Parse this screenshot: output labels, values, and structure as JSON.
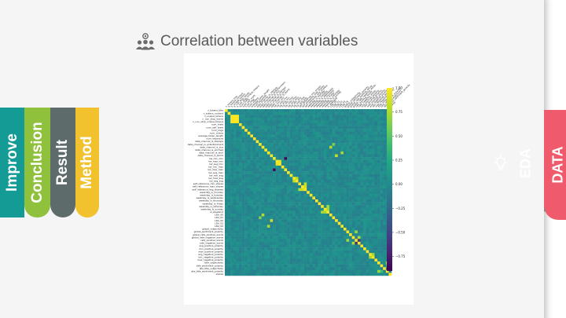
{
  "tabs": {
    "left": [
      "Improve",
      "Conclusion",
      "Result",
      "Method"
    ],
    "right": [
      "EDA",
      "DATA"
    ]
  },
  "colors": {
    "improve": "#149b95",
    "conclusion": "#8fc13c",
    "result": "#5d6b6a",
    "method": "#f2c12e",
    "eda": "#4ec7b3",
    "data": "#ef5b6c",
    "title_text": "#595959"
  },
  "slide": {
    "title": "Correlation between variables",
    "title_icon": "people-network-icon"
  },
  "chart_data": {
    "type": "heatmap",
    "colormap": "viridis",
    "grid": false,
    "n_variables": 59,
    "colorbar": {
      "ticks": [
        1.0,
        0.75,
        0.5,
        0.25,
        0.0,
        -0.25,
        -0.5,
        -0.75
      ],
      "labels": [
        "1.00",
        "0.75",
        "0.50",
        "0.25",
        "0.00",
        "−0.25",
        "−0.50",
        "−0.75"
      ],
      "range": [
        -0.9,
        1.0
      ]
    },
    "y_labels": [
      "n_tokens_title",
      "n_tokens_content",
      "n_unique_tokens",
      "n_non_stop_words",
      "n_non_stop_unique_tokens",
      "num_hrefs",
      "num_self_hrefs",
      "num_imgs",
      "num_videos",
      "average_token_length",
      "num_keywords",
      "data_channel_is_lifestyle",
      "data_channel_is_entertainment",
      "data_channel_is_bus",
      "data_channel_is_socmed",
      "data_channel_is_tech",
      "data_channel_is_world",
      "kw_min_min",
      "kw_max_min",
      "kw_avg_min",
      "kw_min_max",
      "kw_max_max",
      "kw_avg_max",
      "kw_min_avg",
      "kw_max_avg",
      "kw_avg_avg",
      "self_reference_min_shares",
      "self_reference_max_shares",
      "self_reference_avg_sharess",
      "weekday_is_monday",
      "weekday_is_tuesday",
      "weekday_is_wednesday",
      "weekday_is_thursday",
      "weekday_is_friday",
      "weekday_is_saturday",
      "weekday_is_sunday",
      "is_weekend",
      "LDA_00",
      "LDA_01",
      "LDA_02",
      "LDA_03",
      "LDA_04",
      "global_subjectivity",
      "global_sentiment_polarity",
      "global_rate_positive_words",
      "global_rate_negative_words",
      "rate_positive_words",
      "rate_negative_words",
      "avg_positive_polarity",
      "min_positive_polarity",
      "max_positive_polarity",
      "avg_negative_polarity",
      "min_negative_polarity",
      "max_negative_polarity",
      "title_subjectivity",
      "title_sentiment_polarity",
      "abs_title_subjectivity",
      "abs_title_sentiment_polarity",
      "shares"
    ],
    "strong_correlations": [
      {
        "a": "n_unique_tokens",
        "b": "n_non_stop_words",
        "value": 1.0
      },
      {
        "a": "n_unique_tokens",
        "b": "n_non_stop_unique_tokens",
        "value": 1.0
      },
      {
        "a": "n_non_stop_words",
        "b": "n_non_stop_unique_tokens",
        "value": 1.0
      },
      {
        "a": "kw_min_min",
        "b": "kw_max_max",
        "value": -0.86
      },
      {
        "a": "kw_max_min",
        "b": "kw_avg_min",
        "value": 0.94
      },
      {
        "a": "kw_max_avg",
        "b": "kw_avg_avg",
        "value": 0.81
      },
      {
        "a": "self_reference_min_shares",
        "b": "self_reference_avg_sharess",
        "value": 0.82
      },
      {
        "a": "self_reference_max_shares",
        "b": "self_reference_avg_sharess",
        "value": 0.85
      },
      {
        "a": "weekday_is_saturday",
        "b": "is_weekend",
        "value": 0.76
      },
      {
        "a": "weekday_is_sunday",
        "b": "is_weekend",
        "value": 0.74
      },
      {
        "a": "data_channel_is_world",
        "b": "LDA_02",
        "value": 0.84
      },
      {
        "a": "data_channel_is_tech",
        "b": "LDA_04",
        "value": 0.75
      },
      {
        "a": "data_channel_is_bus",
        "b": "LDA_00",
        "value": 0.77
      },
      {
        "a": "data_channel_is_entertainment",
        "b": "LDA_01",
        "value": 0.6
      },
      {
        "a": "global_sentiment_polarity",
        "b": "rate_positive_words",
        "value": 0.73
      },
      {
        "a": "global_rate_negative_words",
        "b": "rate_negative_words",
        "value": 0.78
      },
      {
        "a": "avg_negative_polarity",
        "b": "min_negative_polarity",
        "value": 0.75
      },
      {
        "a": "rate_positive_words",
        "b": "rate_negative_words",
        "value": -0.6
      },
      {
        "a": "title_subjectivity",
        "b": "abs_title_sentiment_polarity",
        "value": 0.71
      },
      {
        "a": "title_sentiment_polarity",
        "b": "abs_title_sentiment_polarity",
        "value": 0.41
      }
    ]
  }
}
